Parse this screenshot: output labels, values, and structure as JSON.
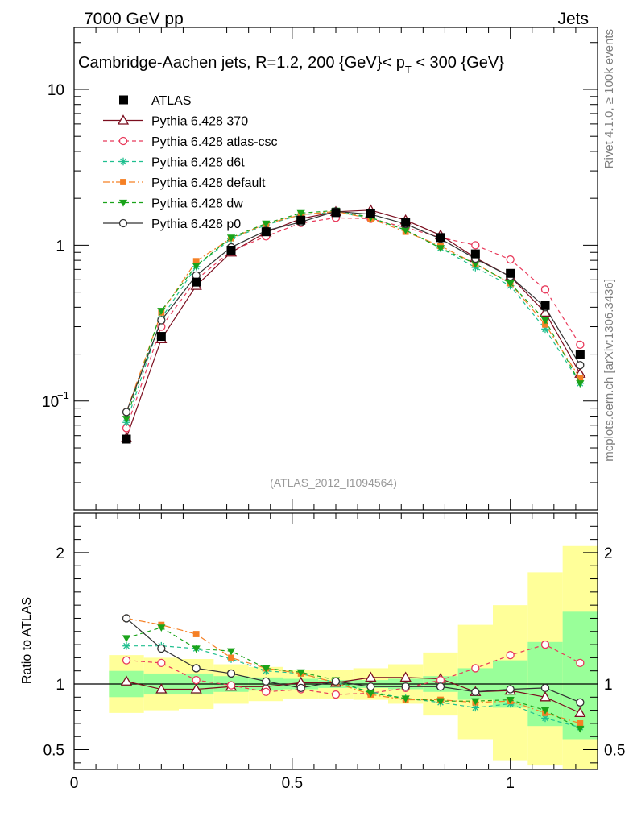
{
  "header": {
    "left": "7000 GeV pp",
    "right": "Jets"
  },
  "side_labels": {
    "rivet": "Rivet 4.1.0, ≥ 100k events",
    "mcplots": "mcplots.cern.ch [arXiv:1306.3436]"
  },
  "chart_data": {
    "type": "line",
    "title": "Cambridge-Aachen jets, R=1.2,  200 {GeV}< p_T < 300 {GeV}",
    "title_parts": {
      "main": "Cambridge-Aachen jets, R=1.2,  200 {GeV}< p",
      "sub": "T",
      "tail": " < 300 {GeV}"
    },
    "analysis_id": "(ATLAS_2012_I1094564)",
    "ylabel_ratio": "Ratio to ATLAS",
    "xlim": [
      0,
      1.2
    ],
    "ylim_main": [
      0.02,
      25
    ],
    "ylim_ratio": [
      0.35,
      2.3
    ],
    "x_ticks": [
      "0",
      "0.5",
      "1"
    ],
    "x_tick_values": [
      0,
      0.5,
      1
    ],
    "y_ticks_main": [
      {
        "value": 0.1,
        "label": "10",
        "exp": "−1"
      },
      {
        "value": 1,
        "label": "1",
        "exp": ""
      },
      {
        "value": 10,
        "label": "10",
        "exp": ""
      }
    ],
    "y_ticks_ratio": [
      {
        "value": 0.5,
        "label": "0.5"
      },
      {
        "value": 1,
        "label": "1"
      },
      {
        "value": 2,
        "label": "2"
      }
    ],
    "x": [
      0.12,
      0.2,
      0.28,
      0.36,
      0.44,
      0.52,
      0.6,
      0.68,
      0.76,
      0.84,
      0.92,
      1.0,
      1.08,
      1.16
    ],
    "bins": [
      [
        0.08,
        0.16
      ],
      [
        0.16,
        0.24
      ],
      [
        0.24,
        0.32
      ],
      [
        0.32,
        0.4
      ],
      [
        0.4,
        0.48
      ],
      [
        0.48,
        0.56
      ],
      [
        0.56,
        0.64
      ],
      [
        0.64,
        0.72
      ],
      [
        0.72,
        0.8
      ],
      [
        0.8,
        0.88
      ],
      [
        0.88,
        0.96
      ],
      [
        0.96,
        1.04
      ],
      [
        1.04,
        1.12
      ],
      [
        1.12,
        1.2
      ]
    ],
    "band_green": [
      [
        0.9,
        1.1
      ],
      [
        0.92,
        1.08
      ],
      [
        0.92,
        1.08
      ],
      [
        0.94,
        1.06
      ],
      [
        0.95,
        1.05
      ],
      [
        0.96,
        1.04
      ],
      [
        0.97,
        1.03
      ],
      [
        0.97,
        1.03
      ],
      [
        0.96,
        1.04
      ],
      [
        0.94,
        1.06
      ],
      [
        0.88,
        1.12
      ],
      [
        0.82,
        1.18
      ],
      [
        0.68,
        1.32
      ],
      [
        0.58,
        1.55
      ]
    ],
    "band_yellow": [
      [
        0.78,
        1.22
      ],
      [
        0.8,
        1.2
      ],
      [
        0.81,
        1.19
      ],
      [
        0.85,
        1.15
      ],
      [
        0.87,
        1.13
      ],
      [
        0.89,
        1.11
      ],
      [
        0.89,
        1.11
      ],
      [
        0.88,
        1.12
      ],
      [
        0.85,
        1.15
      ],
      [
        0.76,
        1.24
      ],
      [
        0.58,
        1.45
      ],
      [
        0.42,
        1.6
      ],
      [
        0.38,
        1.85
      ],
      [
        0.34,
        2.05
      ]
    ],
    "data": {
      "name": "ATLAS",
      "values": [
        0.057,
        0.26,
        0.58,
        0.93,
        1.22,
        1.45,
        1.62,
        1.6,
        1.4,
        1.12,
        0.88,
        0.66,
        0.41,
        0.2
      ]
    },
    "series": [
      {
        "name": "Pythia 6.428 370",
        "color": "#7b0d1e",
        "dash": "",
        "marker": "triangle-open",
        "values": [
          0.058,
          0.25,
          0.55,
          0.9,
          1.21,
          1.48,
          1.64,
          1.68,
          1.45,
          1.16,
          0.83,
          0.63,
          0.37,
          0.15
        ],
        "ratio": [
          1.02,
          0.96,
          0.96,
          0.98,
          0.98,
          1.01,
          1.01,
          1.05,
          1.05,
          1.04,
          0.94,
          0.95,
          0.9,
          0.78
        ]
      },
      {
        "name": "Pythia 6.428 atlas-csc",
        "color": "#e8395a",
        "dash": "5,4",
        "marker": "circle-open",
        "values": [
          0.067,
          0.3,
          0.6,
          0.92,
          1.14,
          1.39,
          1.5,
          1.48,
          1.3,
          1.12,
          1.0,
          0.81,
          0.52,
          0.23
        ],
        "ratio": [
          1.18,
          1.16,
          1.03,
          0.99,
          0.94,
          0.96,
          0.92,
          0.93,
          0.97,
          1.03,
          1.12,
          1.22,
          1.3,
          1.16
        ]
      },
      {
        "name": "Pythia 6.428 d6t",
        "color": "#1fbf8f",
        "dash": "5,4",
        "marker": "star",
        "values": [
          0.073,
          0.34,
          0.73,
          1.1,
          1.35,
          1.57,
          1.63,
          1.5,
          1.25,
          0.96,
          0.72,
          0.55,
          0.29,
          0.13
        ],
        "ratio": [
          1.29,
          1.29,
          1.27,
          1.19,
          1.1,
          1.08,
          1.01,
          0.94,
          0.89,
          0.86,
          0.82,
          0.85,
          0.74,
          0.67
        ]
      },
      {
        "name": "Pythia 6.428 default",
        "color": "#f58025",
        "dash": "8,3,2,3",
        "marker": "square",
        "values": [
          0.085,
          0.37,
          0.79,
          1.11,
          1.37,
          1.57,
          1.65,
          1.48,
          1.22,
          0.99,
          0.76,
          0.57,
          0.31,
          0.14
        ],
        "ratio": [
          1.5,
          1.45,
          1.38,
          1.2,
          1.12,
          1.08,
          1.01,
          0.92,
          0.88,
          0.88,
          0.86,
          0.87,
          0.78,
          0.7
        ]
      },
      {
        "name": "Pythia 6.428 dw",
        "color": "#1aa31a",
        "dash": "5,4",
        "marker": "triangle-down",
        "values": [
          0.077,
          0.38,
          0.74,
          1.12,
          1.38,
          1.61,
          1.67,
          1.51,
          1.25,
          0.96,
          0.76,
          0.57,
          0.33,
          0.13
        ],
        "ratio": [
          1.35,
          1.43,
          1.27,
          1.25,
          1.12,
          1.09,
          1.03,
          0.93,
          0.89,
          0.87,
          0.87,
          0.88,
          0.8,
          0.66
        ]
      },
      {
        "name": "Pythia 6.428 p0",
        "color": "#333333",
        "dash": "",
        "marker": "circle-open",
        "values": [
          0.085,
          0.33,
          0.64,
          0.97,
          1.24,
          1.41,
          1.65,
          1.58,
          1.37,
          1.1,
          0.82,
          0.63,
          0.4,
          0.17
        ],
        "ratio": [
          1.5,
          1.27,
          1.12,
          1.08,
          1.02,
          0.97,
          1.02,
          0.98,
          0.98,
          0.98,
          0.94,
          0.96,
          0.97,
          0.86
        ]
      }
    ]
  }
}
